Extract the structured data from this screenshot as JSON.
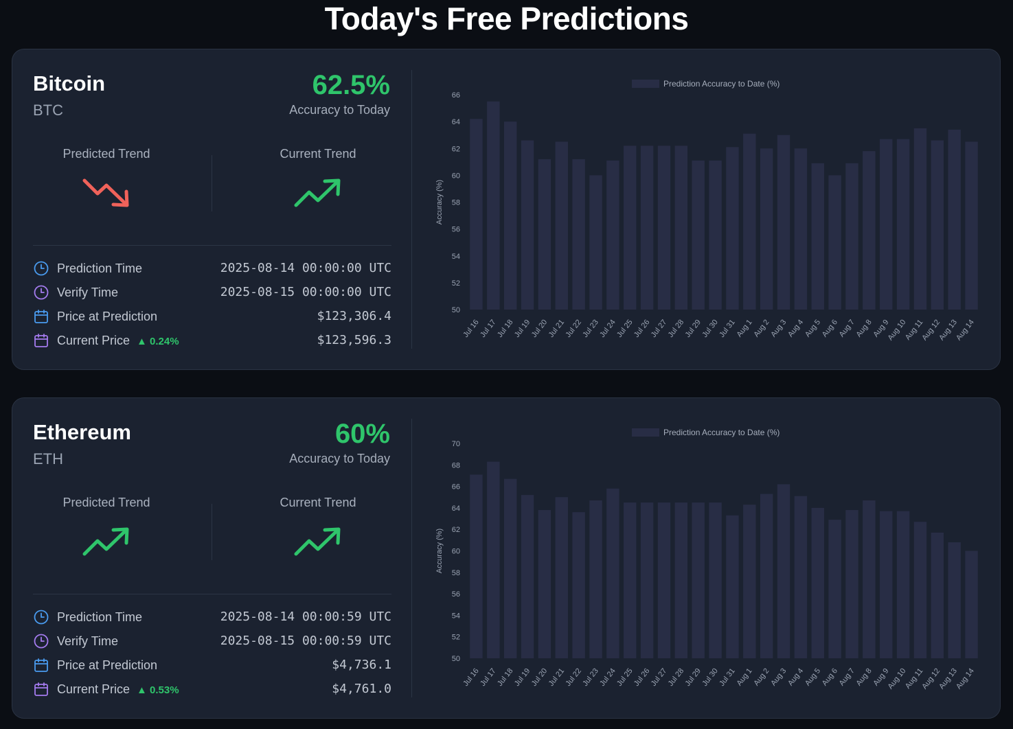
{
  "page": {
    "title": "Today's Free Predictions"
  },
  "colors": {
    "accent_green": "#2fc56b",
    "accent_red": "#f0625a",
    "bar": "#282d45",
    "clock_blue": "#4a9cf0",
    "clock_purple": "#a57cf0"
  },
  "labels": {
    "accuracy": "Accuracy to Today",
    "predicted_trend": "Predicted Trend",
    "current_trend": "Current Trend",
    "prediction_time": "Prediction Time",
    "verify_time": "Verify Time",
    "price_at_prediction": "Price at Prediction",
    "current_price": "Current Price"
  },
  "cards": [
    {
      "name": "Bitcoin",
      "symbol": "BTC",
      "accuracy": "62.5%",
      "predicted_trend": "down",
      "current_trend": "up",
      "prediction_time": "2025-08-14 00:00:00 UTC",
      "verify_time": "2025-08-15 00:00:00 UTC",
      "price_at_prediction": "$123,306.4",
      "current_price": "$123,596.3",
      "change": "▲ 0.24%",
      "icons": [
        "clock-icon",
        "clock-icon",
        "calendar-icon",
        "calendar-icon"
      ]
    },
    {
      "name": "Ethereum",
      "symbol": "ETH",
      "accuracy": "60%",
      "predicted_trend": "up",
      "current_trend": "up",
      "prediction_time": "2025-08-14 00:00:59 UTC",
      "verify_time": "2025-08-15 00:00:59 UTC",
      "price_at_prediction": "$4,736.1",
      "current_price": "$4,761.0",
      "change": "▲ 0.53%",
      "icons": [
        "clock-icon",
        "clock-icon",
        "calendar-icon",
        "calendar-icon"
      ]
    }
  ],
  "chart_data": [
    {
      "type": "bar",
      "legend": "Prediction Accuracy to Date (%)",
      "legend_position": "top",
      "ylabel": "Accuracy (%)",
      "ylim": [
        50,
        66
      ],
      "yticks": [
        50,
        52,
        54,
        56,
        58,
        60,
        62,
        64,
        66
      ],
      "grid": false,
      "categories": [
        "Jul 16",
        "Jul 17",
        "Jul 18",
        "Jul 19",
        "Jul 20",
        "Jul 21",
        "Jul 22",
        "Jul 23",
        "Jul 24",
        "Jul 25",
        "Jul 26",
        "Jul 27",
        "Jul 28",
        "Jul 29",
        "Jul 30",
        "Jul 31",
        "Aug 1",
        "Aug 2",
        "Aug 3",
        "Aug 4",
        "Aug 5",
        "Aug 6",
        "Aug 7",
        "Aug 8",
        "Aug 9",
        "Aug 10",
        "Aug 11",
        "Aug 12",
        "Aug 13",
        "Aug 14"
      ],
      "values": [
        64.2,
        65.5,
        64.0,
        62.6,
        61.2,
        62.5,
        61.2,
        60.0,
        61.1,
        62.2,
        62.2,
        62.2,
        62.2,
        61.1,
        61.1,
        62.1,
        63.1,
        62.0,
        63.0,
        62.0,
        60.9,
        60.0,
        60.9,
        61.8,
        62.7,
        62.7,
        63.5,
        62.6,
        63.4,
        62.5
      ]
    },
    {
      "type": "bar",
      "legend": "Prediction Accuracy to Date (%)",
      "legend_position": "top",
      "ylabel": "Accuracy (%)",
      "ylim": [
        50,
        70
      ],
      "yticks": [
        50,
        52,
        54,
        56,
        58,
        60,
        62,
        64,
        66,
        68,
        70
      ],
      "grid": false,
      "categories": [
        "Jul 16",
        "Jul 17",
        "Jul 18",
        "Jul 19",
        "Jul 20",
        "Jul 21",
        "Jul 22",
        "Jul 23",
        "Jul 24",
        "Jul 25",
        "Jul 26",
        "Jul 27",
        "Jul 28",
        "Jul 29",
        "Jul 30",
        "Jul 31",
        "Aug 1",
        "Aug 2",
        "Aug 3",
        "Aug 4",
        "Aug 5",
        "Aug 6",
        "Aug 7",
        "Aug 8",
        "Aug 9",
        "Aug 10",
        "Aug 11",
        "Aug 12",
        "Aug 13",
        "Aug 14"
      ],
      "values": [
        67.1,
        68.3,
        66.7,
        65.2,
        63.8,
        65.0,
        63.6,
        64.7,
        65.8,
        64.5,
        64.5,
        64.5,
        64.5,
        64.5,
        64.5,
        63.3,
        64.3,
        65.3,
        66.2,
        65.1,
        64.0,
        62.9,
        63.8,
        64.7,
        63.7,
        63.7,
        62.7,
        61.7,
        60.8,
        60.0
      ]
    }
  ]
}
